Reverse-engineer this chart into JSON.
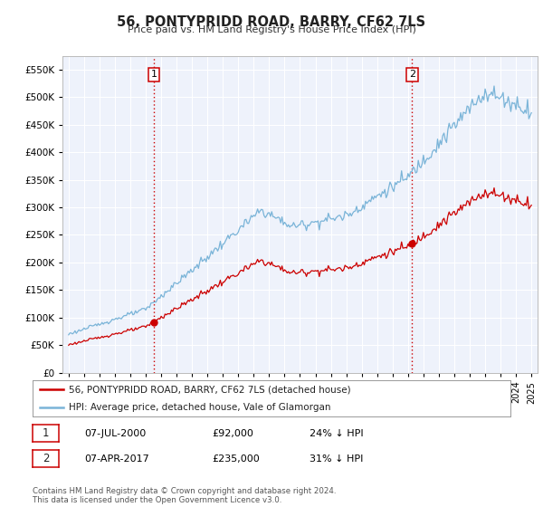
{
  "title": "56, PONTYPRIDD ROAD, BARRY, CF62 7LS",
  "subtitle": "Price paid vs. HM Land Registry's House Price Index (HPI)",
  "legend_line1": "56, PONTYPRIDD ROAD, BARRY, CF62 7LS (detached house)",
  "legend_line2": "HPI: Average price, detached house, Vale of Glamorgan",
  "annotation1_date": "07-JUL-2000",
  "annotation1_price": "£92,000",
  "annotation1_hpi": "24% ↓ HPI",
  "annotation2_date": "07-APR-2017",
  "annotation2_price": "£235,000",
  "annotation2_hpi": "31% ↓ HPI",
  "footer1": "Contains HM Land Registry data © Crown copyright and database right 2024.",
  "footer2": "This data is licensed under the Open Government Licence v3.0.",
  "hpi_color": "#7ab4d8",
  "price_color": "#cc0000",
  "marker_color": "#cc0000",
  "vline_color": "#cc0000",
  "bg_color": "#ffffff",
  "plot_bg_color": "#eef2fb",
  "grid_color": "#ffffff",
  "sale1_year": 2000.52,
  "sale1_value": 92000,
  "sale2_year": 2017.27,
  "sale2_value": 235000,
  "ylim_min": 0,
  "ylim_max": 575000,
  "xlim_min": 1994.6,
  "xlim_max": 2025.4
}
